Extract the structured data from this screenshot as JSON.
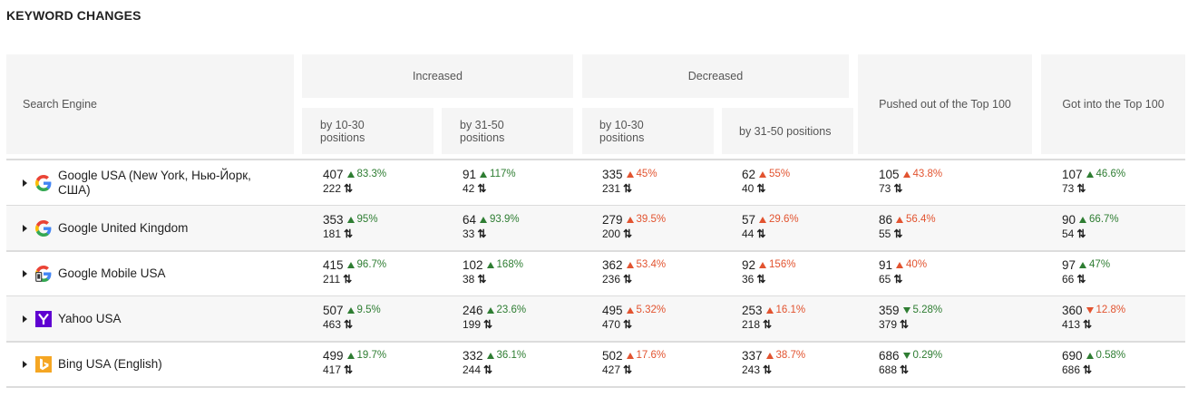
{
  "title": "KEYWORD CHANGES",
  "headers": {
    "search_engine": "Search Engine",
    "increased": "Increased",
    "decreased": "Decreased",
    "inc_10_30": "by 10-30\npositions",
    "inc_31_50": "by 31-50\npositions",
    "dec_10_30": "by 10-30\npositions",
    "dec_31_50": "by 31-50 positions",
    "pushed_out": "Pushed out of the Top 100",
    "got_into": "Got into the Top 100"
  },
  "swap_glyph": "⇅",
  "rows": [
    {
      "engine": "Google USA (New York, Нью-Йорк, США)",
      "logo": "google-icon",
      "cells": [
        {
          "value": "407",
          "prev": "222",
          "pct": "83.3%",
          "dir": "up",
          "tone": "green"
        },
        {
          "value": "91",
          "prev": "42",
          "pct": "117%",
          "dir": "up",
          "tone": "green"
        },
        {
          "value": "335",
          "prev": "231",
          "pct": "45%",
          "dir": "up",
          "tone": "red"
        },
        {
          "value": "62",
          "prev": "40",
          "pct": "55%",
          "dir": "up",
          "tone": "red"
        },
        {
          "value": "105",
          "prev": "73",
          "pct": "43.8%",
          "dir": "up",
          "tone": "red"
        },
        {
          "value": "107",
          "prev": "73",
          "pct": "46.6%",
          "dir": "up",
          "tone": "green"
        }
      ]
    },
    {
      "engine": "Google United Kingdom",
      "logo": "google-icon",
      "cells": [
        {
          "value": "353",
          "prev": "181",
          "pct": "95%",
          "dir": "up",
          "tone": "green"
        },
        {
          "value": "64",
          "prev": "33",
          "pct": "93.9%",
          "dir": "up",
          "tone": "green"
        },
        {
          "value": "279",
          "prev": "200",
          "pct": "39.5%",
          "dir": "up",
          "tone": "red"
        },
        {
          "value": "57",
          "prev": "44",
          "pct": "29.6%",
          "dir": "up",
          "tone": "red"
        },
        {
          "value": "86",
          "prev": "55",
          "pct": "56.4%",
          "dir": "up",
          "tone": "red"
        },
        {
          "value": "90",
          "prev": "54",
          "pct": "66.7%",
          "dir": "up",
          "tone": "green"
        }
      ]
    },
    {
      "engine": "Google Mobile USA",
      "logo": "google-mobile-icon",
      "cells": [
        {
          "value": "415",
          "prev": "211",
          "pct": "96.7%",
          "dir": "up",
          "tone": "green"
        },
        {
          "value": "102",
          "prev": "38",
          "pct": "168%",
          "dir": "up",
          "tone": "green"
        },
        {
          "value": "362",
          "prev": "236",
          "pct": "53.4%",
          "dir": "up",
          "tone": "red"
        },
        {
          "value": "92",
          "prev": "36",
          "pct": "156%",
          "dir": "up",
          "tone": "red"
        },
        {
          "value": "91",
          "prev": "65",
          "pct": "40%",
          "dir": "up",
          "tone": "red"
        },
        {
          "value": "97",
          "prev": "66",
          "pct": "47%",
          "dir": "up",
          "tone": "green"
        }
      ]
    },
    {
      "engine": "Yahoo USA",
      "logo": "yahoo-icon",
      "cells": [
        {
          "value": "507",
          "prev": "463",
          "pct": "9.5%",
          "dir": "up",
          "tone": "green"
        },
        {
          "value": "246",
          "prev": "199",
          "pct": "23.6%",
          "dir": "up",
          "tone": "green"
        },
        {
          "value": "495",
          "prev": "470",
          "pct": "5.32%",
          "dir": "up",
          "tone": "red"
        },
        {
          "value": "253",
          "prev": "218",
          "pct": "16.1%",
          "dir": "up",
          "tone": "red"
        },
        {
          "value": "359",
          "prev": "379",
          "pct": "5.28%",
          "dir": "down",
          "tone": "green"
        },
        {
          "value": "360",
          "prev": "413",
          "pct": "12.8%",
          "dir": "down",
          "tone": "red"
        }
      ]
    },
    {
      "engine": "Bing USA (English)",
      "logo": "bing-icon",
      "cells": [
        {
          "value": "499",
          "prev": "417",
          "pct": "19.7%",
          "dir": "up",
          "tone": "green"
        },
        {
          "value": "332",
          "prev": "244",
          "pct": "36.1%",
          "dir": "up",
          "tone": "green"
        },
        {
          "value": "502",
          "prev": "427",
          "pct": "17.6%",
          "dir": "up",
          "tone": "red"
        },
        {
          "value": "337",
          "prev": "243",
          "pct": "38.7%",
          "dir": "up",
          "tone": "red"
        },
        {
          "value": "686",
          "prev": "688",
          "pct": "0.29%",
          "dir": "down",
          "tone": "green"
        },
        {
          "value": "690",
          "prev": "686",
          "pct": "0.58%",
          "dir": "up",
          "tone": "green"
        }
      ]
    }
  ],
  "colors": {
    "positive": "#2e7d32",
    "negative": "#e2532f",
    "header_bg": "#f5f5f5",
    "alt_row_bg": "#f7f7f7"
  }
}
